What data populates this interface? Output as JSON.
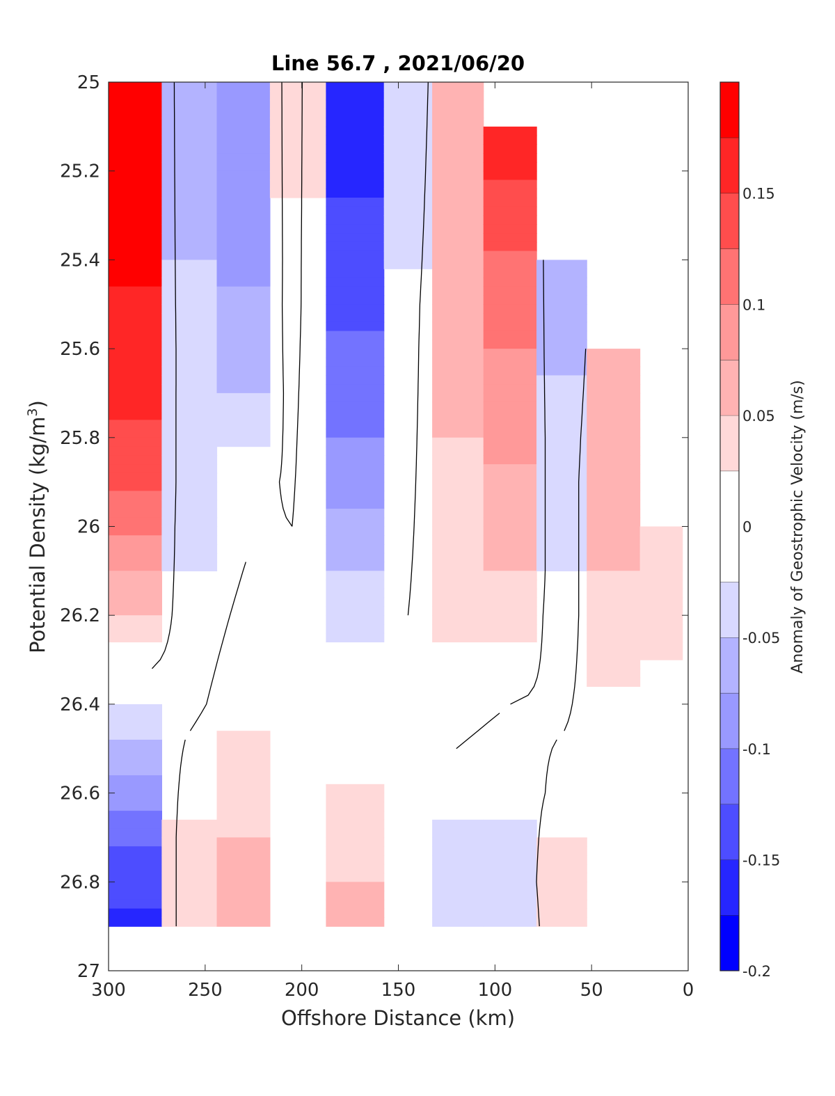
{
  "chart_data": {
    "type": "heatmap",
    "title": "Line 56.7 , 2021/06/20",
    "xlabel": "Offshore Distance (km)",
    "ylabel_main": "Potential Density (kg/m",
    "ylabel_sup": "3",
    "ylabel_tail": ")",
    "xlim": [
      300,
      0
    ],
    "ylim": [
      25,
      27
    ],
    "x_reversed": true,
    "y_reversed": true,
    "x_ticks": [
      "300",
      "250",
      "200",
      "150",
      "100",
      "50",
      "0"
    ],
    "x_tick_values": [
      300,
      250,
      200,
      150,
      100,
      50,
      0
    ],
    "y_ticks": [
      "25",
      "25.2",
      "25.4",
      "25.6",
      "25.8",
      "26",
      "26.2",
      "26.4",
      "26.6",
      "26.8",
      "27"
    ],
    "y_tick_values": [
      25,
      25.2,
      25.4,
      25.6,
      25.8,
      26,
      26.2,
      26.4,
      26.6,
      26.8,
      27
    ],
    "colorbar": {
      "label": "Anomaly of Geostrophic Velocity (m/s)",
      "range": [
        -0.2,
        0.2
      ],
      "tick_labels": [
        "0.15",
        "0.1",
        "0.05",
        "0",
        "-0.05",
        "-0.1",
        "-0.15",
        "-0.2"
      ],
      "tick_values": [
        0.15,
        0.1,
        0.05,
        0,
        -0.05,
        -0.1,
        -0.15,
        -0.2
      ],
      "levels": [
        -0.2,
        -0.175,
        -0.15,
        -0.125,
        -0.1,
        -0.075,
        -0.05,
        -0.025,
        0.025,
        0.05,
        0.075,
        0.1,
        0.125,
        0.15,
        0.175,
        0.2
      ],
      "colors": [
        "#0000ff",
        "#2626ff",
        "#4d4dff",
        "#7373ff",
        "#9999ff",
        "#b3b3ff",
        "#d9d9ff",
        "#ffffff",
        "#ffd9d9",
        "#ffb3b3",
        "#ff9999",
        "#ff7373",
        "#ff4d4d",
        "#ff2626",
        "#ff0000"
      ]
    },
    "contour_level": 0,
    "columns": [
      {
        "x": 285,
        "y_top": 25,
        "y_bottom": 26.9,
        "profile": [
          [
            25,
            0.19
          ],
          [
            25.6,
            0.17
          ],
          [
            25.9,
            0.13
          ],
          [
            26.2,
            0.05
          ],
          [
            26.5,
            -0.06
          ],
          [
            26.7,
            -0.12
          ],
          [
            26.9,
            -0.16
          ]
        ]
      },
      {
        "x": 260,
        "y_top": 25,
        "y_bottom": 26.9,
        "profile": [
          [
            25,
            -0.06
          ],
          [
            25.4,
            -0.05
          ],
          [
            26.0,
            -0.03
          ],
          [
            26.4,
            -0.01
          ],
          [
            26.7,
            0.03
          ],
          [
            26.9,
            0.04
          ]
        ]
      },
      {
        "x": 228,
        "y_top": 25,
        "y_bottom": 26.9,
        "profile": [
          [
            25,
            -0.1
          ],
          [
            25.4,
            -0.08
          ],
          [
            25.7,
            -0.05
          ],
          [
            25.9,
            -0.01
          ],
          [
            26.4,
            0.02
          ],
          [
            26.8,
            0.06
          ],
          [
            26.9,
            0.06
          ]
        ]
      },
      {
        "x": 205,
        "y_top": 25,
        "y_bottom": 26.9,
        "profile": [
          [
            25,
            0.03
          ],
          [
            25.5,
            0.02
          ],
          [
            26.0,
            0.0
          ],
          [
            26.9,
            0.0
          ]
        ]
      },
      {
        "x": 170,
        "y_top": 25,
        "y_bottom": 26.9,
        "profile": [
          [
            25,
            -0.17
          ],
          [
            25.4,
            -0.14
          ],
          [
            25.8,
            -0.1
          ],
          [
            26.1,
            -0.05
          ],
          [
            26.4,
            0.0
          ],
          [
            26.7,
            0.04
          ],
          [
            26.9,
            0.06
          ]
        ]
      },
      {
        "x": 145,
        "y_top": 25,
        "y_bottom": 26.9,
        "profile": [
          [
            25,
            -0.05
          ],
          [
            25.5,
            -0.02
          ],
          [
            26.2,
            0.0
          ],
          [
            26.9,
            0.0
          ]
        ]
      },
      {
        "x": 120,
        "y_top": 25,
        "y_bottom": 26.9,
        "profile": [
          [
            25,
            0.07
          ],
          [
            25.6,
            0.06
          ],
          [
            26.2,
            0.03
          ],
          [
            26.5,
            0.0
          ],
          [
            26.7,
            -0.03
          ],
          [
            26.9,
            -0.04
          ]
        ]
      },
      {
        "x": 92,
        "y_top": 25.1,
        "y_bottom": 26.9,
        "profile": [
          [
            25.1,
            0.17
          ],
          [
            25.4,
            0.12
          ],
          [
            25.8,
            0.08
          ],
          [
            26.1,
            0.05
          ],
          [
            26.4,
            0.0
          ],
          [
            26.7,
            -0.03
          ],
          [
            26.9,
            -0.05
          ]
        ]
      },
      {
        "x": 65,
        "y_top": 25.4,
        "y_bottom": 26.9,
        "profile": [
          [
            25.4,
            -0.07
          ],
          [
            25.8,
            -0.04
          ],
          [
            26.2,
            -0.02
          ],
          [
            26.6,
            0.01
          ],
          [
            26.8,
            0.04
          ],
          [
            26.9,
            0.04
          ]
        ]
      },
      {
        "x": 40,
        "y_top": 25.6,
        "y_bottom": 26.6,
        "profile": [
          [
            25.6,
            0.06
          ],
          [
            25.9,
            0.07
          ],
          [
            26.2,
            0.04
          ],
          [
            26.4,
            0.02
          ],
          [
            26.6,
            0.0
          ]
        ]
      },
      {
        "x": 10,
        "y_top": 26.0,
        "y_bottom": 26.4,
        "profile": [
          [
            26.0,
            0.04
          ],
          [
            26.2,
            0.03
          ],
          [
            26.4,
            0.02
          ]
        ]
      }
    ]
  }
}
